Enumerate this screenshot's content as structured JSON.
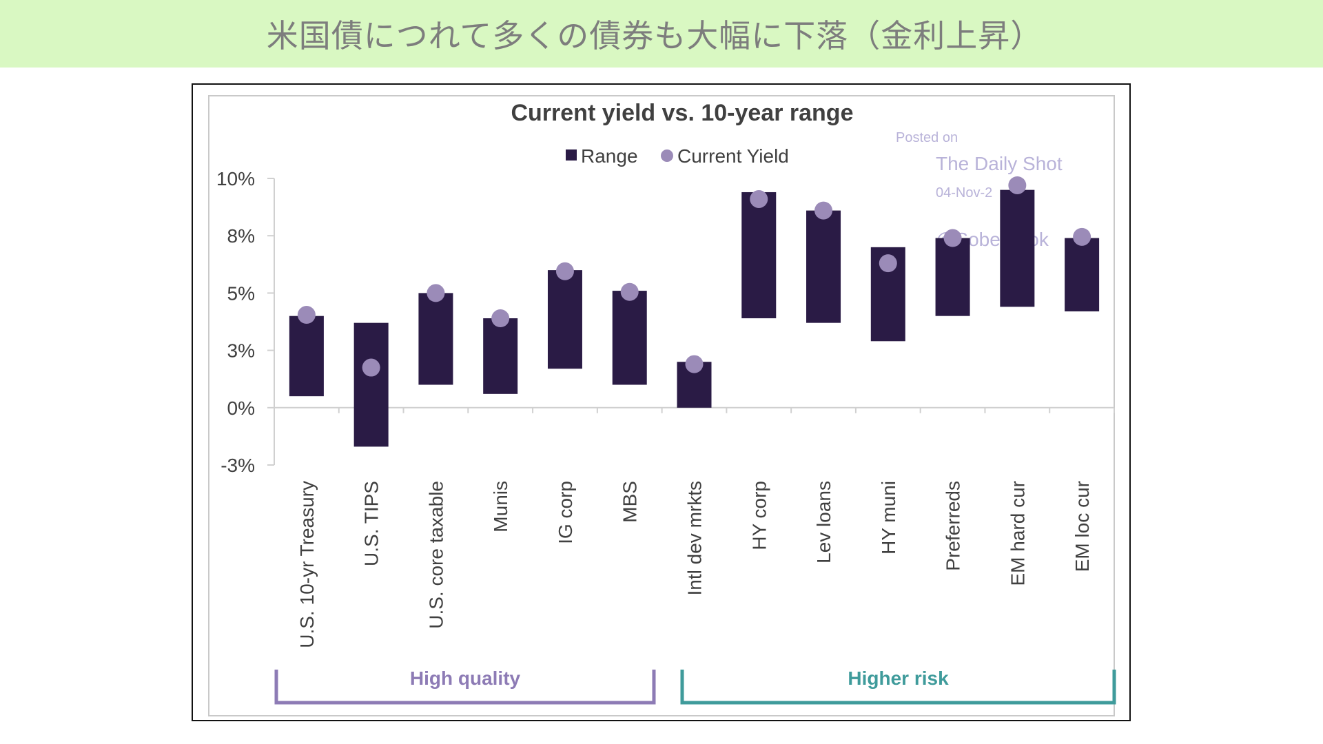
{
  "banner": {
    "title": "米国債につれて多くの債券も大幅に下落（金利上昇）",
    "background": "#d9f8c2"
  },
  "watermark": {
    "line1": "Posted on",
    "line2": "The Daily Shot",
    "line3": "04-Nov-2",
    "line4": "@SoberLook"
  },
  "chart_data": {
    "type": "bar",
    "title": "Current yield vs. 10-year range",
    "legend": {
      "range_label": "Range",
      "yield_label": "Current Yield",
      "placement": "top-center"
    },
    "colors": {
      "range": "#2a1b45",
      "yield": "#9b8bb8",
      "high_quality": "#8d7bb5",
      "higher_risk": "#3f9b9b"
    },
    "y_ticks": [
      "10%",
      "8%",
      "5%",
      "3%",
      "0%",
      "-3%"
    ],
    "ylim": [
      -2.5,
      10
    ],
    "grid": false,
    "categories": [
      "U.S. 10-yr Treasury",
      "U.S. TIPS",
      "U.S. core taxable",
      "Munis",
      "IG corp",
      "MBS",
      "Intl dev mrkts",
      "HY corp",
      "Lev loans",
      "HY muni",
      "Preferreds",
      "EM hard cur",
      "EM loc cur"
    ],
    "series": [
      {
        "name": "Range",
        "low": [
          0.5,
          -1.7,
          1.0,
          0.6,
          1.7,
          1.0,
          0.0,
          3.9,
          3.7,
          2.9,
          4.0,
          4.4,
          4.2
        ],
        "high": [
          4.0,
          3.7,
          5.0,
          3.9,
          6.0,
          5.1,
          2.0,
          9.4,
          8.6,
          7.0,
          7.4,
          9.5,
          7.4
        ]
      },
      {
        "name": "Current Yield",
        "values": [
          4.05,
          1.75,
          5.0,
          3.9,
          5.95,
          5.05,
          1.9,
          9.1,
          8.6,
          6.3,
          7.4,
          9.7,
          7.45
        ]
      }
    ],
    "groups": [
      {
        "label": "High quality",
        "from": 0,
        "to": 5
      },
      {
        "label": "Higher risk",
        "from": 6,
        "to": 12
      }
    ]
  }
}
